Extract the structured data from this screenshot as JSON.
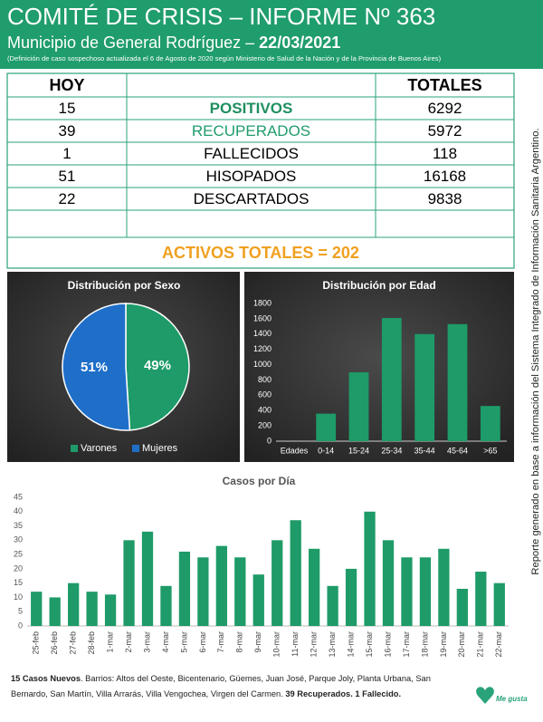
{
  "header": {
    "title": "COMITÉ DE CRISIS – INFORME Nº 363",
    "subtitle": "Municipio de General Rodríguez –",
    "date": "22/03/2021",
    "note": "(Definición de caso sospechoso actualizada el 6 de Agosto de 2020 según Ministerio de Salud de la Nación y de la Provincia de Buenos Aires)"
  },
  "table": {
    "header": {
      "hoy": "HOY",
      "totales": "TOTALES"
    },
    "rows": [
      [
        15,
        "POSITIVOS",
        6292
      ],
      [
        39,
        "RECUPERADOS",
        5972
      ],
      [
        1,
        "FALLECIDOS",
        118
      ],
      [
        51,
        "HISOPADOS",
        16168
      ],
      [
        22,
        "DESCARTADOS",
        9838
      ]
    ],
    "activos": "ACTIVOS TOTALES = 202"
  },
  "side_note": "Reporte generado en base a información del Sistema Integrado de Información Sanitaria Argentino.",
  "chart_data": [
    {
      "type": "pie",
      "title": "Distribución por Sexo",
      "categories": [
        "Varones",
        "Mujeres"
      ],
      "values": [
        49,
        51
      ],
      "value_labels": [
        "49%",
        "51%"
      ],
      "colors": [
        "#1e9b68",
        "#1f6fc9"
      ]
    },
    {
      "type": "bar",
      "title": "Distribución por Edad",
      "x_label": "Edades",
      "categories": [
        "0-14",
        "15-24",
        "25-34",
        "35-44",
        "45-64",
        ">65"
      ],
      "values": [
        360,
        900,
        1610,
        1400,
        1530,
        460
      ],
      "color": "#1e9b68",
      "ylim": [
        0,
        1800
      ],
      "yticks": [
        0,
        200,
        400,
        600,
        800,
        1000,
        1200,
        1400,
        1600,
        1800
      ],
      "grid": false
    },
    {
      "type": "bar",
      "title": "Casos por Día",
      "categories": [
        "25-feb",
        "26-feb",
        "27-feb",
        "28-feb",
        "1-mar",
        "2-mar",
        "3-mar",
        "4-mar",
        "5-mar",
        "6-mar",
        "7-mar",
        "8-mar",
        "9-mar",
        "10-mar",
        "11-mar",
        "12-mar",
        "13-mar",
        "14-mar",
        "15-mar",
        "16-mar",
        "17-mar",
        "18-mar",
        "19-mar",
        "20-mar",
        "21-mar",
        "22-mar"
      ],
      "values": [
        12,
        10,
        15,
        12,
        11,
        30,
        33,
        14,
        26,
        24,
        28,
        24,
        18,
        30,
        37,
        27,
        14,
        20,
        40,
        30,
        24,
        24,
        27,
        13,
        19,
        15
      ],
      "color": "#1e9b68",
      "ylim": [
        0,
        45
      ],
      "yticks": [
        0,
        5,
        10,
        15,
        20,
        25,
        30,
        35,
        40,
        45
      ],
      "grid": false
    }
  ],
  "footer": [
    "15 Casos Nuevos",
    ". Barrios: Altos del Oeste, Bicentenario, Güemes, Juan José, Parque Joly, Planta Urbana, San Bernardo, San Martín, Villa Arrarás, Villa Vengochea, Virgen del Carmen.",
    "39 Recuperados.",
    "1 Fallecido."
  ],
  "logo": "Me gusta"
}
